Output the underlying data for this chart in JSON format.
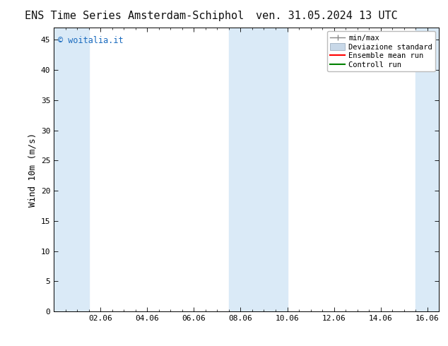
{
  "title_left": "ENS Time Series Amsterdam-Schiphol",
  "title_right": "ven. 31.05.2024 13 UTC",
  "ylabel": "Wind 10m (m/s)",
  "ylim": [
    0,
    47
  ],
  "yticks": [
    0,
    5,
    10,
    15,
    20,
    25,
    30,
    35,
    40,
    45
  ],
  "xlabel_ticks": [
    "02.06",
    "04.06",
    "06.06",
    "08.06",
    "10.06",
    "12.06",
    "14.06",
    "16.06"
  ],
  "x_tick_positions": [
    2,
    4,
    6,
    8,
    10,
    12,
    14,
    16
  ],
  "xlim": [
    0,
    16.5
  ],
  "bg_color": "#ffffff",
  "plot_bg_color": "#ffffff",
  "shaded_bands": [
    {
      "x_start": 0.0,
      "x_end": 1.5
    },
    {
      "x_start": 7.5,
      "x_end": 10.0
    },
    {
      "x_start": 15.5,
      "x_end": 16.5
    }
  ],
  "shaded_color": "#daeaf7",
  "watermark_text": "© woitalia.it",
  "watermark_color": "#1a6bbf",
  "watermark_fontsize": 8.5,
  "legend_items": [
    {
      "label": "min/max",
      "color": "#a0a0a0",
      "type": "errorbar"
    },
    {
      "label": "Deviazione standard",
      "color": "#c8d8e8",
      "type": "rect"
    },
    {
      "label": "Ensemble mean run",
      "color": "#ff0000",
      "type": "line"
    },
    {
      "label": "Controll run",
      "color": "#008000",
      "type": "line"
    }
  ],
  "title_fontsize": 11,
  "axis_label_fontsize": 9,
  "tick_fontsize": 8,
  "legend_fontsize": 7.5,
  "font_family": "monospace"
}
